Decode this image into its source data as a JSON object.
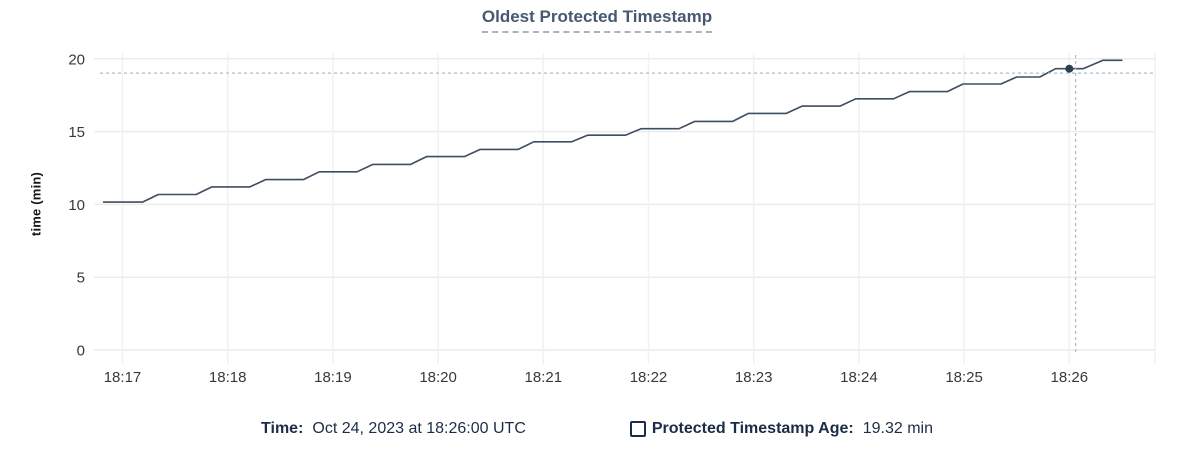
{
  "title": "Oldest Protected Timestamp",
  "y_axis_title": "time (min)",
  "legend": {
    "time_label": "Time:",
    "time_value": "Oct 24, 2023 at 18:26:00 UTC",
    "series_label": "Protected Timestamp Age:",
    "series_value": "19.32 min"
  },
  "colors": {
    "line": "#3e4d62",
    "dot": "#2e3d53",
    "title_text": "#495872",
    "legend_text": "#1c2c47",
    "tick_text": "#36393e",
    "grid_horizontal": "#ececec",
    "grid_vertical": "#f1f1f1",
    "crosshair": "#a9bfce"
  },
  "chart_data": {
    "type": "line",
    "title": "Oldest Protected Timestamp",
    "xlabel": "",
    "ylabel": "time (min)",
    "ylim": [
      0,
      20
    ],
    "grid": true,
    "legend_position": "bottom-center",
    "x_tick_labels": [
      "18:17",
      "18:18",
      "18:19",
      "18:20",
      "18:21",
      "18:22",
      "18:23",
      "18:24",
      "18:25",
      "18:26"
    ],
    "x_tick_minutes": [
      17,
      18,
      19,
      20,
      21,
      22,
      23,
      24,
      25,
      26
    ],
    "y_ticks": [
      0,
      5,
      10,
      15,
      20
    ],
    "series": [
      {
        "name": "Protected Timestamp Age",
        "unit": "min",
        "points": [
          [
            16.82,
            10.16
          ],
          [
            17.19,
            10.16
          ],
          [
            17.34,
            10.68
          ],
          [
            17.7,
            10.68
          ],
          [
            17.85,
            11.2
          ],
          [
            18.21,
            11.2
          ],
          [
            18.36,
            11.7
          ],
          [
            18.72,
            11.7
          ],
          [
            18.87,
            12.24
          ],
          [
            19.23,
            12.24
          ],
          [
            19.38,
            12.75
          ],
          [
            19.74,
            12.75
          ],
          [
            19.89,
            13.28
          ],
          [
            20.25,
            13.28
          ],
          [
            20.4,
            13.78
          ],
          [
            20.76,
            13.78
          ],
          [
            20.91,
            14.3
          ],
          [
            21.27,
            14.3
          ],
          [
            21.42,
            14.75
          ],
          [
            21.78,
            14.75
          ],
          [
            21.93,
            15.2
          ],
          [
            22.29,
            15.2
          ],
          [
            22.44,
            15.7
          ],
          [
            22.8,
            15.7
          ],
          [
            22.95,
            16.25
          ],
          [
            23.31,
            16.25
          ],
          [
            23.46,
            16.75
          ],
          [
            23.82,
            16.75
          ],
          [
            23.97,
            17.25
          ],
          [
            24.33,
            17.25
          ],
          [
            24.48,
            17.75
          ],
          [
            24.84,
            17.75
          ],
          [
            24.99,
            18.27
          ],
          [
            25.35,
            18.27
          ],
          [
            25.5,
            18.75
          ],
          [
            25.72,
            18.75
          ],
          [
            25.87,
            19.32
          ],
          [
            26.13,
            19.32
          ],
          [
            26.32,
            19.9
          ],
          [
            26.5,
            19.9
          ]
        ]
      }
    ],
    "hover": {
      "time": "Oct 24, 2023 at 18:26:00 UTC",
      "t": 26.0,
      "value": 19.32,
      "crosshair_t": 26.06,
      "crosshair_value": 19.02
    }
  }
}
